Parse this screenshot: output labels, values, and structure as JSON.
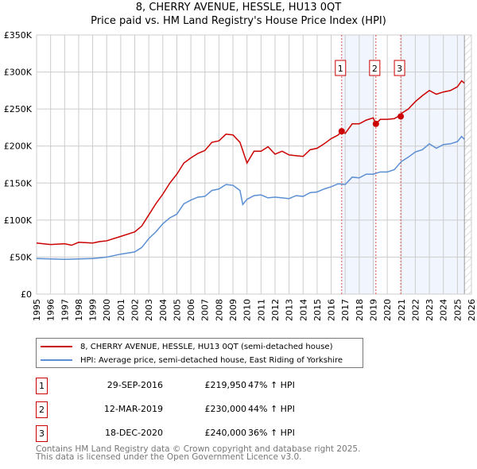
{
  "chart_data": {
    "type": "line",
    "title": "8, CHERRY AVENUE, HESSLE, HU13 0QT",
    "subtitle": "Price paid vs. HM Land Registry's House Price Index (HPI)",
    "xlim": [
      1995,
      2026
    ],
    "ylim": [
      0,
      350000
    ],
    "x_ticks": [
      "1995",
      "1996",
      "1997",
      "1998",
      "1999",
      "2000",
      "2001",
      "2002",
      "2003",
      "2004",
      "2005",
      "2006",
      "2007",
      "2008",
      "2009",
      "2010",
      "2011",
      "2012",
      "2013",
      "2014",
      "2015",
      "2016",
      "2017",
      "2018",
      "2019",
      "2020",
      "2021",
      "2022",
      "2023",
      "2024",
      "2025",
      "2026"
    ],
    "y_ticks": [
      {
        "v": 0,
        "label": "£0"
      },
      {
        "v": 50000,
        "label": "£50K"
      },
      {
        "v": 100000,
        "label": "£100K"
      },
      {
        "v": 150000,
        "label": "£150K"
      },
      {
        "v": 200000,
        "label": "£200K"
      },
      {
        "v": 250000,
        "label": "£250K"
      },
      {
        "v": 300000,
        "label": "£300K"
      },
      {
        "v": 350000,
        "label": "£350K"
      }
    ],
    "grid": true,
    "series": [
      {
        "name": "8, CHERRY AVENUE, HESSLE, HU13 0QT (semi-detached house)",
        "color": "#cc0000",
        "x": [
          1995,
          1996,
          1997,
          1997.5,
          1998,
          1999,
          1999.5,
          2000,
          2001,
          2001.5,
          2002,
          2002.5,
          2003,
          2003.5,
          2004,
          2004.5,
          2005,
          2005.5,
          2006,
          2006.5,
          2007,
          2007.5,
          2008,
          2008.5,
          2009,
          2009.5,
          2010,
          2010.5,
          2011,
          2011.5,
          2012,
          2012.5,
          2013,
          2013.5,
          2014,
          2014.5,
          2015,
          2015.5,
          2016,
          2016.5,
          2016.75,
          2017,
          2017.5,
          2018,
          2018.5,
          2019,
          2019.2,
          2019.5,
          2020,
          2020.5,
          2020.96,
          2021,
          2021.5,
          2022,
          2022.5,
          2023,
          2023.5,
          2024,
          2024.5,
          2025,
          2025.3,
          2025.5
        ],
        "y": [
          69000,
          67000,
          68000,
          66000,
          70000,
          69000,
          71000,
          72000,
          78000,
          81000,
          84000,
          92000,
          107000,
          122000,
          135000,
          150000,
          162000,
          177000,
          184000,
          190000,
          194000,
          205000,
          207000,
          216000,
          215000,
          205000,
          177000,
          193000,
          193000,
          199000,
          189000,
          193000,
          188000,
          187000,
          186000,
          195000,
          197000,
          203000,
          210000,
          215000,
          220000,
          217000,
          230000,
          230000,
          235000,
          238000,
          230000,
          236000,
          236000,
          237000,
          242000,
          244000,
          250000,
          260000,
          268000,
          275000,
          270000,
          273000,
          275000,
          280000,
          288000,
          285000
        ]
      },
      {
        "name": "HPI: Average price, semi-detached house, East Riding of Yorkshire",
        "color": "#5b8fd4",
        "x": [
          1995,
          1997,
          1999,
          2000,
          2001,
          2002,
          2002.5,
          2003,
          2003.5,
          2004,
          2004.5,
          2005,
          2005.5,
          2006,
          2006.5,
          2007,
          2007.5,
          2008,
          2008.5,
          2009,
          2009.5,
          2009.7,
          2010,
          2010.5,
          2011,
          2011.5,
          2012,
          2012.5,
          2013,
          2013.5,
          2014,
          2014.5,
          2015,
          2015.5,
          2016,
          2016.5,
          2017,
          2017.5,
          2018,
          2018.5,
          2019,
          2019.5,
          2020,
          2020.5,
          2021,
          2021.5,
          2022,
          2022.5,
          2023,
          2023.5,
          2024,
          2024.5,
          2025,
          2025.3,
          2025.5
        ],
        "y": [
          48000,
          47000,
          48000,
          50000,
          54000,
          57000,
          63000,
          75000,
          84000,
          95000,
          103000,
          108000,
          122000,
          127000,
          131000,
          132000,
          140000,
          142000,
          148000,
          147000,
          140000,
          121000,
          128000,
          133000,
          134000,
          130000,
          131000,
          130000,
          129000,
          133000,
          132000,
          137000,
          138000,
          142000,
          145000,
          149000,
          148000,
          158000,
          157000,
          162000,
          162000,
          165000,
          165000,
          168000,
          179000,
          185000,
          192000,
          195000,
          203000,
          197000,
          202000,
          203000,
          206000,
          213000,
          209000
        ]
      }
    ],
    "sales": [
      {
        "label": "1",
        "x": 2016.75,
        "y": 219950,
        "date": "29-SEP-2016",
        "price": "£219,950",
        "hpi": "47% ↑ HPI"
      },
      {
        "label": "2",
        "x": 2019.19,
        "y": 230000,
        "date": "12-MAR-2019",
        "price": "£230,000",
        "hpi": "44% ↑ HPI"
      },
      {
        "label": "3",
        "x": 2020.96,
        "y": 240000,
        "date": "18-DEC-2020",
        "price": "£240,000",
        "hpi": "36% ↑ HPI"
      }
    ],
    "shaded_ranges": [
      [
        2016.75,
        2019.19
      ],
      [
        2020.96,
        2025.5
      ]
    ],
    "forecast_from": 2025.5
  },
  "legend": {
    "items": [
      "8, CHERRY AVENUE, HESSLE, HU13 0QT (semi-detached house)",
      "HPI: Average price, semi-detached house, East Riding of Yorkshire"
    ]
  },
  "footer": {
    "line1": "Contains HM Land Registry data © Crown copyright and database right 2025.",
    "line2": "This data is licensed under the Open Government Licence v3.0."
  }
}
